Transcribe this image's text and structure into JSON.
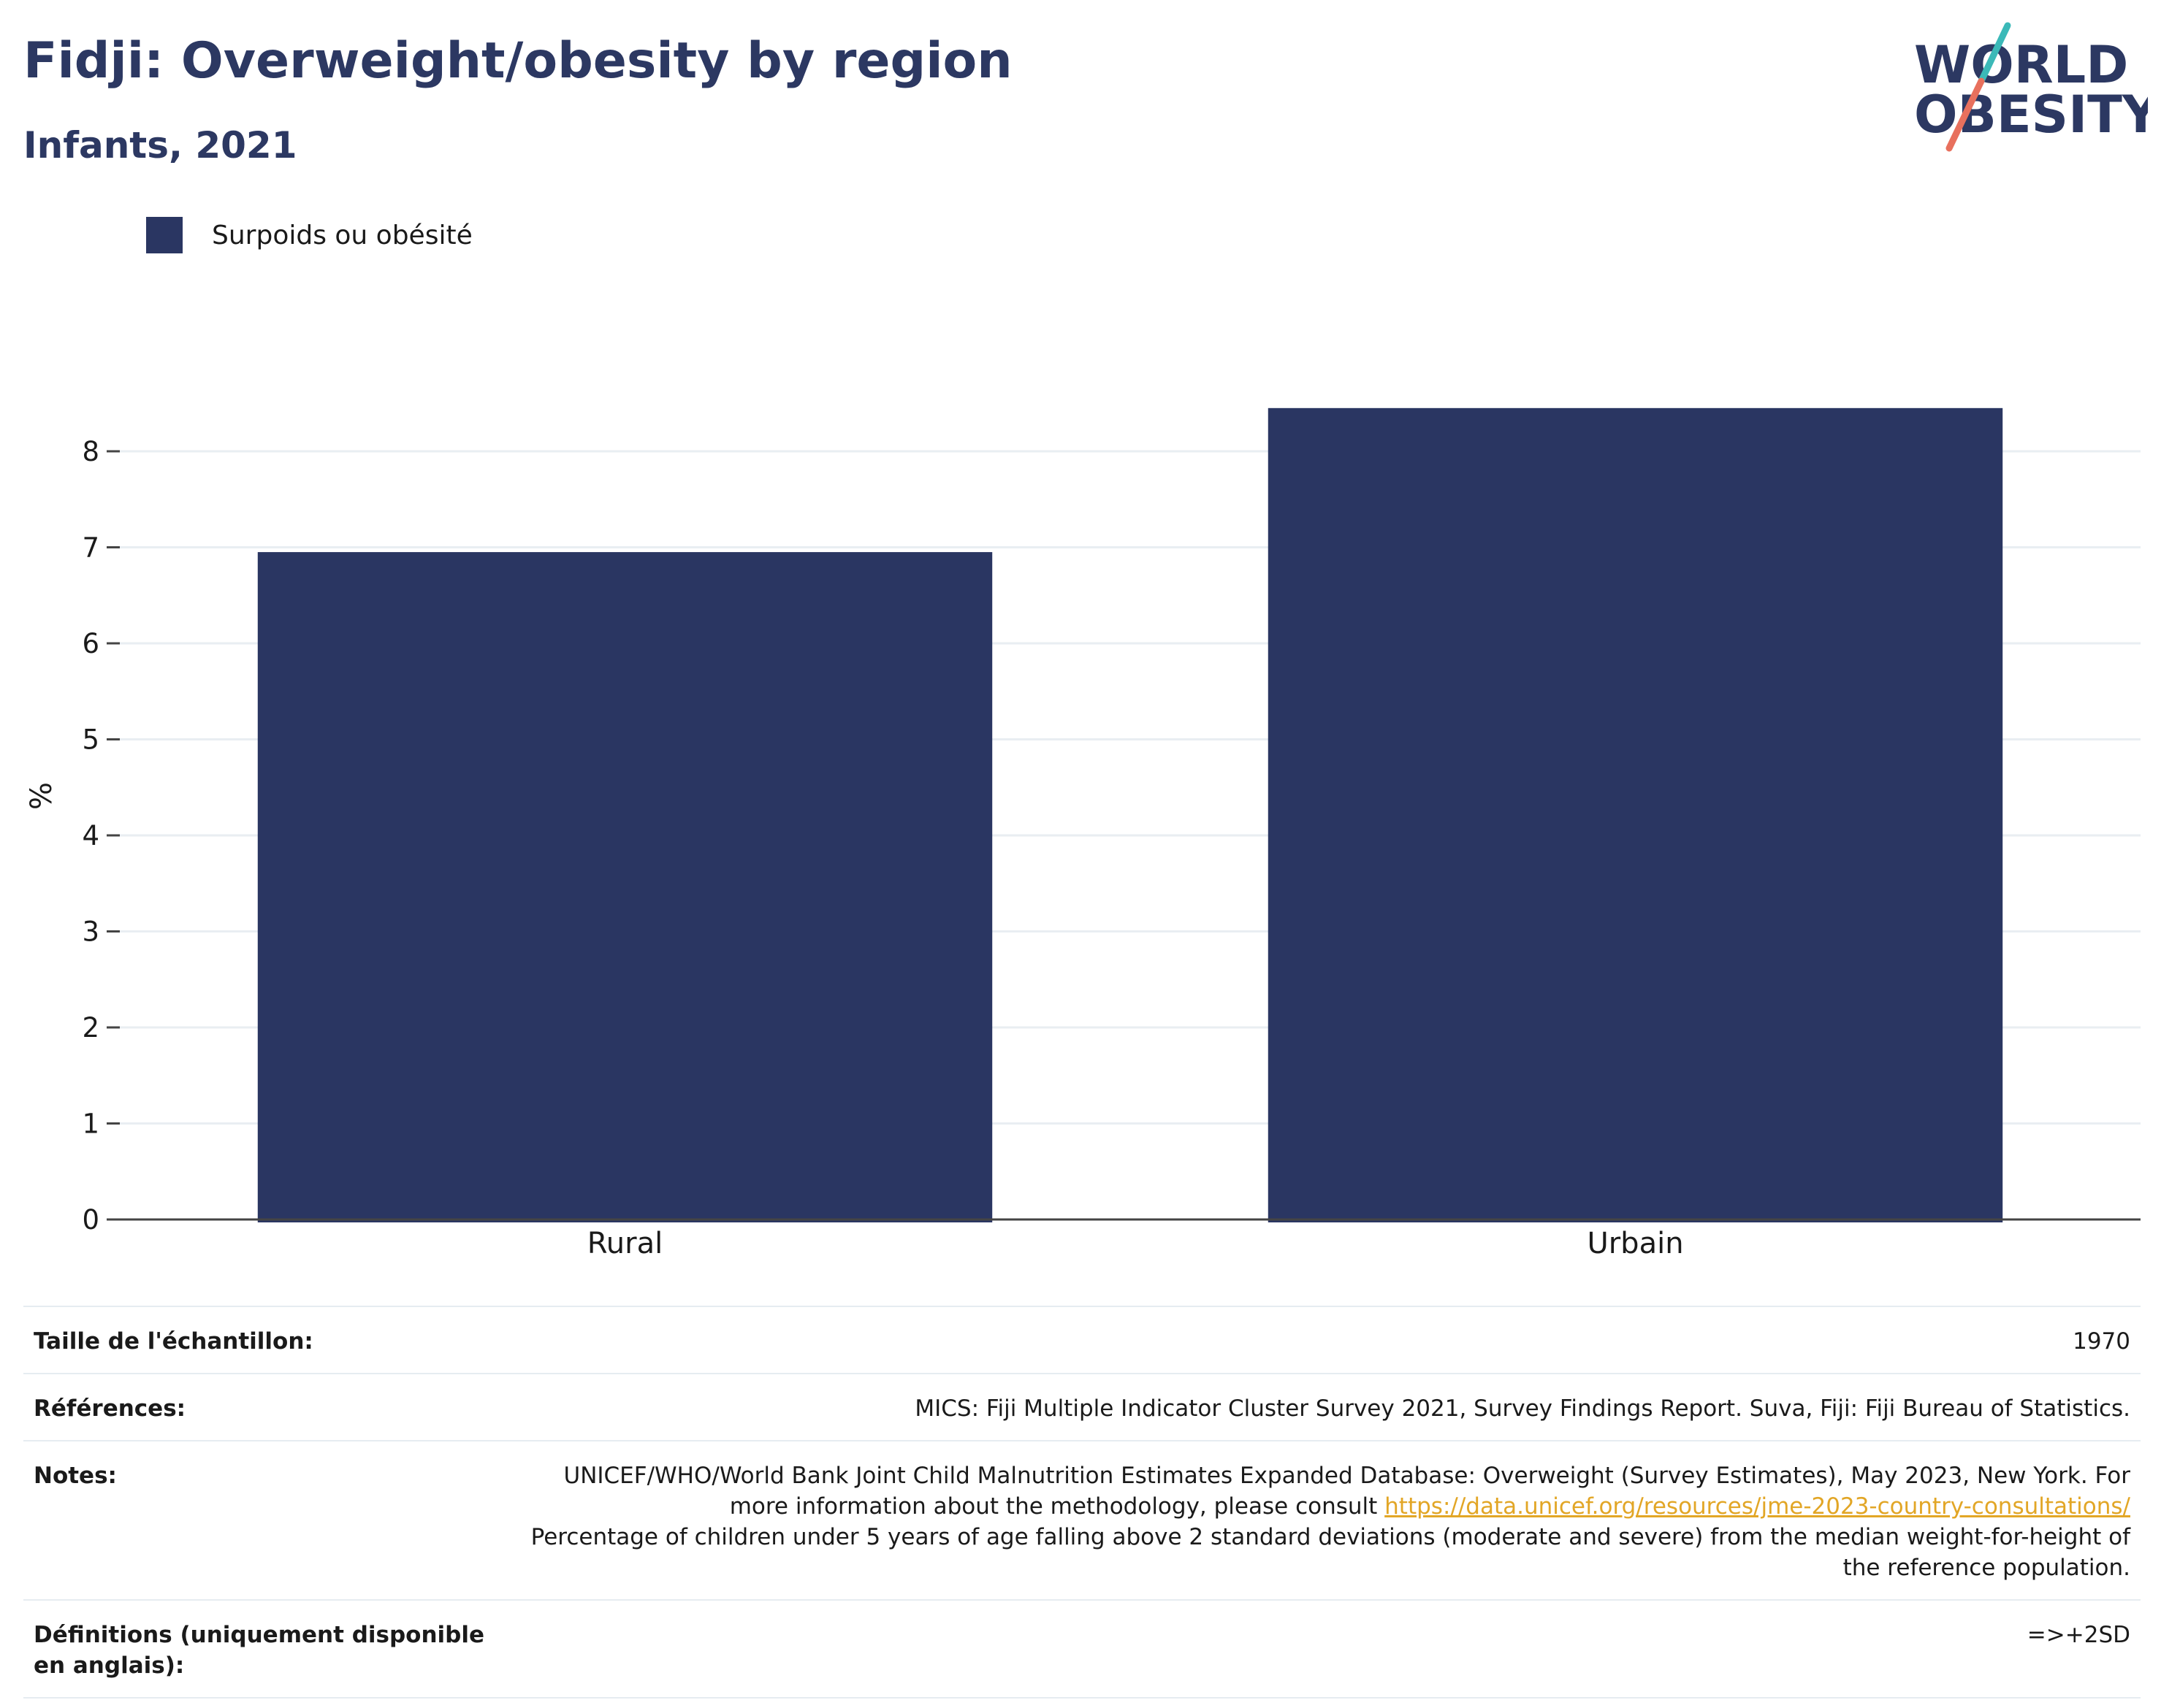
{
  "header": {
    "title": "Fidji: Overweight/obesity by region",
    "subtitle": "Infants, 2021"
  },
  "logo": {
    "line1": "WORLD",
    "line2": "OBESITY",
    "colors": {
      "text": "#2c3862",
      "teal": "#3bb9b8",
      "coral": "#e8705d"
    }
  },
  "legend": {
    "items": [
      {
        "label": "Surpoids ou obésité",
        "color": "#2a3662"
      }
    ]
  },
  "chart_data": {
    "type": "bar",
    "categories": [
      "Rural",
      "Urbain"
    ],
    "series": [
      {
        "name": "Surpoids ou obésité",
        "values": [
          6.95,
          8.45
        ],
        "color": "#2a3662"
      }
    ],
    "ylabel": "%",
    "xlabel": "",
    "ylim": [
      0,
      8.9
    ],
    "yticks": [
      0,
      1,
      2,
      3,
      4,
      5,
      6,
      7,
      8
    ],
    "grid": true,
    "legend_position": "top-left"
  },
  "info": {
    "sample_label": "Taille de l'échantillon:",
    "sample_value": "1970",
    "references_label": "Références:",
    "references_value": "MICS: Fiji Multiple Indicator Cluster Survey 2021, Survey Findings Report. Suva, Fiji: Fiji Bureau of Statistics.",
    "notes_label": "Notes:",
    "notes_text_1": "UNICEF/WHO/World Bank Joint Child Malnutrition Estimates Expanded Database: Overweight (Survey Estimates), May 2023, New York. For more information about the methodology, please consult ",
    "notes_link": "https://data.unicef.org/resources/jme-2023-country-consultations/",
    "notes_text_2": "Percentage of children under 5 years of age falling above 2 standard deviations (moderate and severe) from the median weight-for-height of the reference population.",
    "definitions_label": "Définitions (uniquement disponible en anglais):",
    "definitions_value": "=>+2SD"
  }
}
